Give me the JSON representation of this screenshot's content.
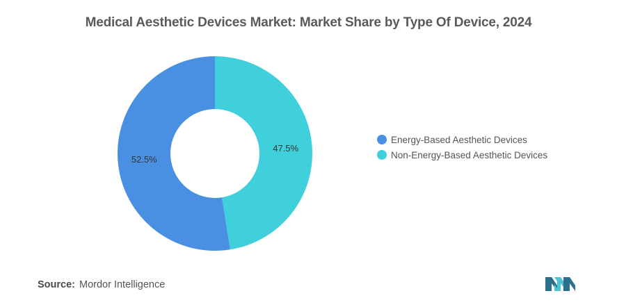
{
  "title": "Medical Aesthetic Devices Market: Market Share by Type Of Device, 2024",
  "source": {
    "label": "Source:",
    "name": "Mordor Intelligence"
  },
  "logo_icon": "mordor-intelligence-logo-icon",
  "colors": {
    "energy": "#4a90e2",
    "non_energy": "#40d0dc",
    "logo_dark": "#2b6f88",
    "logo_light": "#4ec3d3"
  },
  "chart_data": {
    "type": "pie",
    "style": "donut",
    "title": "Medical Aesthetic Devices Market: Market Share by Type Of Device, 2024",
    "legend_position": "right",
    "slices": [
      {
        "name": "Energy-Based Aesthetic Devices",
        "value": 52.5,
        "label": "52.5%",
        "color": "#4a90e2"
      },
      {
        "name": "Non-Energy-Based Aesthetic Devices",
        "value": 47.5,
        "label": "47.5%",
        "color": "#40d0dc"
      }
    ]
  }
}
